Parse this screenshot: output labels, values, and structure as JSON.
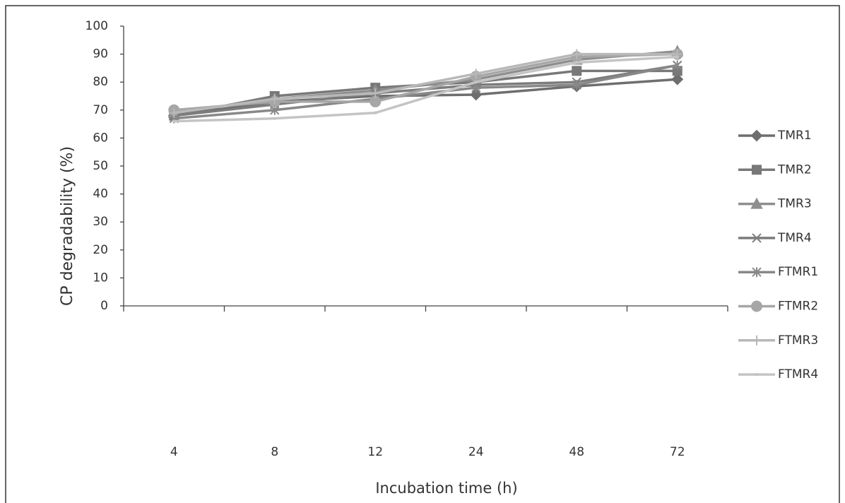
{
  "chart_data": {
    "type": "line",
    "y_label": "CP degradability (%)",
    "x_label": "Incubation  time (h)",
    "categories": [
      "4",
      "8",
      "12",
      "24",
      "48",
      "72"
    ],
    "ylim": [
      0,
      100
    ],
    "yticks": [
      0,
      10,
      20,
      30,
      40,
      50,
      60,
      70,
      80,
      90,
      100
    ],
    "grid": false,
    "legend": "right",
    "series": [
      {
        "name": "TMR1",
        "color": "#6e6e6e",
        "marker": "diamond",
        "values": [
          68,
          73,
          75,
          75.5,
          78.5,
          81
        ]
      },
      {
        "name": "TMR2",
        "color": "#787878",
        "marker": "square",
        "values": [
          68,
          75,
          78,
          80,
          84,
          84
        ]
      },
      {
        "name": "TMR3",
        "color": "#8e8e8e",
        "marker": "triangle",
        "values": [
          69,
          74,
          77,
          81,
          88,
          91
        ]
      },
      {
        "name": "TMR4",
        "color": "#7c7c7c",
        "marker": "x",
        "values": [
          68,
          72,
          76,
          79,
          80,
          86
        ]
      },
      {
        "name": "FTMR1",
        "color": "#888888",
        "marker": "star",
        "values": [
          67,
          70,
          74,
          78,
          79,
          86
        ]
      },
      {
        "name": "FTMR2",
        "color": "#a6a6a6",
        "marker": "circle",
        "values": [
          70,
          73,
          73,
          82,
          89,
          90
        ]
      },
      {
        "name": "FTMR3",
        "color": "#b8b8b8",
        "marker": "plus",
        "values": [
          69,
          74,
          76,
          83,
          90,
          90
        ]
      },
      {
        "name": "FTMR4",
        "color": "#c4c4c4",
        "marker": "none",
        "values": [
          66,
          67,
          69,
          80,
          87,
          89
        ]
      }
    ]
  }
}
